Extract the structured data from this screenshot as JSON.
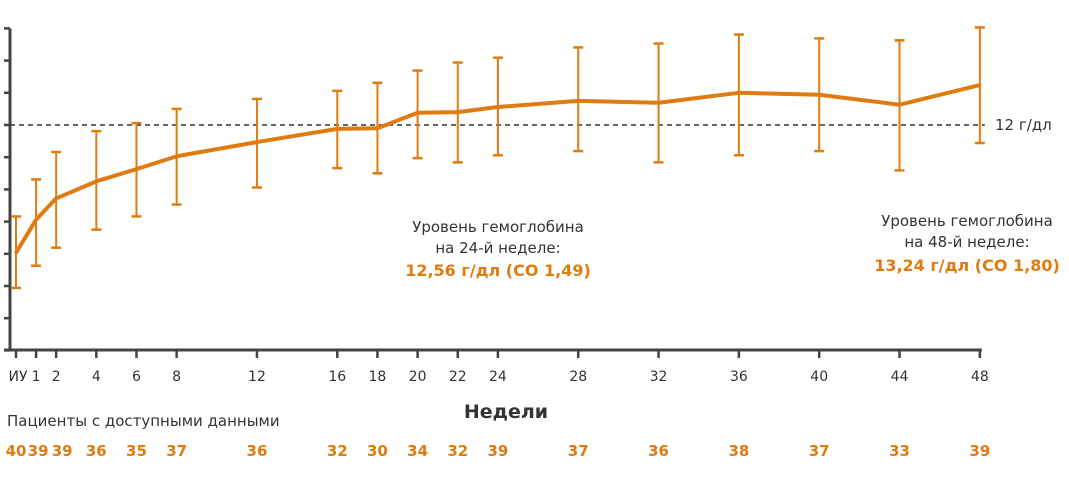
{
  "chart_data": {
    "type": "line",
    "title": "",
    "xlabel": "Недели",
    "ylabel": "",
    "x": [
      0,
      1,
      2,
      4,
      6,
      8,
      12,
      16,
      18,
      20,
      22,
      24,
      28,
      32,
      36,
      40,
      44,
      48
    ],
    "x_tick_labels": [
      "ИУ",
      "1",
      "2",
      "4",
      "6",
      "8",
      "12",
      "16",
      "18",
      "20",
      "22",
      "24",
      "28",
      "32",
      "36",
      "40",
      "44",
      "48"
    ],
    "ylim": [
      5,
      15
    ],
    "y_ticks": [
      5,
      6,
      7,
      8,
      9,
      10,
      11,
      12,
      13,
      14,
      15
    ],
    "grid": false,
    "series": [
      {
        "name": "Уровень гемоглобина",
        "color": "#E07B10",
        "values": [
          8.03,
          9.06,
          9.72,
          10.25,
          10.63,
          11.03,
          11.47,
          11.88,
          11.9,
          12.38,
          12.4,
          12.56,
          12.75,
          12.69,
          13.0,
          12.94,
          12.63,
          13.24
        ],
        "error_upper": [
          9.16,
          10.31,
          11.16,
          11.81,
          12.06,
          12.5,
          12.81,
          13.06,
          13.31,
          13.69,
          13.94,
          14.09,
          14.41,
          14.53,
          14.81,
          14.69,
          14.63,
          15.03
        ],
        "error_lower": [
          6.94,
          7.63,
          8.19,
          8.75,
          9.16,
          9.53,
          10.06,
          10.66,
          10.5,
          10.97,
          10.84,
          11.06,
          11.19,
          10.84,
          11.06,
          11.19,
          10.59,
          11.44
        ]
      }
    ],
    "reference_line": {
      "value": 12,
      "label": "12 г/дл"
    },
    "annotations": [
      {
        "line1": "Уровень гемоглобина",
        "line2": "на 24-й неделе:",
        "value": "12,56 г/дл (СО 1,49)"
      },
      {
        "line1": "Уровень гемоглобина",
        "line2": "на 48-й неделе:",
        "value": "13,24 г/дл (СО 1,80)"
      }
    ],
    "patients_label": "Пациенты с доступными данными",
    "patients_counts": [
      "40",
      "39",
      "39",
      "36",
      "35",
      "37",
      "36",
      "32",
      "30",
      "34",
      "32",
      "39",
      "37",
      "36",
      "38",
      "37",
      "33",
      "39"
    ]
  }
}
